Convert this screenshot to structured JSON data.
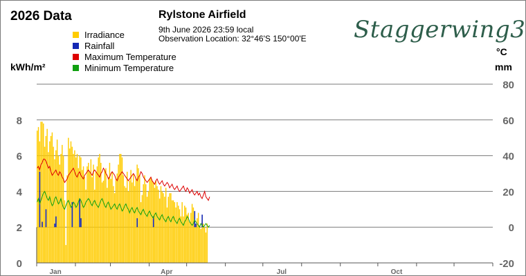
{
  "header": {
    "title": "2026 Data",
    "station": "Rylstone Airfield",
    "timestamp": "9th June 2026  23:59 local",
    "location": "Observation Location: 32°46'S 150°00'E",
    "brand": "Staggerwing3"
  },
  "axes": {
    "left_unit": "kWh/m²",
    "right_unit_top": "°C",
    "right_unit_bottom": "mm"
  },
  "legend": [
    {
      "label": "Irradiance",
      "color": "#ffcc00"
    },
    {
      "label": "Rainfall",
      "color": "#1428b4"
    },
    {
      "label": "Maximum Temperature",
      "color": "#dd0000"
    },
    {
      "label": "Minimum Temperature",
      "color": "#11a011"
    }
  ],
  "chart_data": {
    "type": "bar",
    "title": "2026 Data",
    "left_axis": {
      "label": "kWh/m²",
      "ticks": [
        0,
        2,
        4,
        6,
        8
      ],
      "range": [
        0,
        8
      ]
    },
    "right_axis": {
      "label": "°C / mm",
      "ticks": [
        -20,
        0,
        20,
        40,
        60,
        80
      ],
      "range": [
        -20,
        80
      ]
    },
    "x_axis": {
      "type": "day-of-year",
      "ticks": [
        "Jan",
        "Apr",
        "Jul",
        "Oct"
      ],
      "range": [
        1,
        365
      ]
    },
    "grid": true,
    "legend_position": "top-left",
    "series": [
      {
        "name": "Irradiance",
        "color": "#ffcc00",
        "type": "bar",
        "axis": "left",
        "start_day": 1,
        "values": [
          7.4,
          7.6,
          6.8,
          7.9,
          7.9,
          7.8,
          6.5,
          7.1,
          7.5,
          6.2,
          6.8,
          7.1,
          7.3,
          6.5,
          5.8,
          6.3,
          6.9,
          6.0,
          5.5,
          6.1,
          6.6,
          6.0,
          3.5,
          1.0,
          4.9,
          7.0,
          6.4,
          6.8,
          6.5,
          6.1,
          6.3,
          5.9,
          6.1,
          5.3,
          6.0,
          5.9,
          5.2,
          5.4,
          4.8,
          4.1,
          5.4,
          5.6,
          5.1,
          5.8,
          4.8,
          5.5,
          4.1,
          5.1,
          5.4,
          5.9,
          6.1,
          5.6,
          4.5,
          4.6,
          5.2,
          5.3,
          4.2,
          4.8,
          5.6,
          4.7,
          5.1,
          4.3,
          3.9,
          4.7,
          5.0,
          5.5,
          6.1,
          6.1,
          5.9,
          4.9,
          4.3,
          4.2,
          5.1,
          4.0,
          4.6,
          5.2,
          4.5,
          5.0,
          4.3,
          4.7,
          5.5,
          5.3,
          4.9,
          3.4,
          3.8,
          4.4,
          4.9,
          4.4,
          3.7,
          4.0,
          4.7,
          4.8,
          4.6,
          4.5,
          4.2,
          4.6,
          4.3,
          4.1,
          3.6,
          4.3,
          4.0,
          3.9,
          3.7,
          4.2,
          3.1,
          3.7,
          3.9,
          3.9,
          3.5,
          3.5,
          3.4,
          3.1,
          3.4,
          3.2,
          3.0,
          2.6,
          3.4,
          2.6,
          3.2,
          3.1,
          2.7,
          2.8,
          2.3,
          2.8,
          3.3,
          3.1,
          2.4,
          2.2,
          2.5,
          2.8,
          2.1,
          1.9,
          2.4,
          2.2,
          2.0,
          1.7,
          2.2
        ]
      },
      {
        "name": "Rainfall",
        "color": "#1428b4",
        "type": "bar",
        "axis": "right",
        "start_day": 1,
        "values": [
          0,
          0,
          31,
          0,
          3,
          0,
          0,
          10,
          0,
          0,
          0,
          0,
          0,
          0,
          2,
          6,
          0,
          0,
          0,
          0,
          0,
          0,
          0,
          0,
          0,
          0,
          0,
          0,
          14,
          0,
          0,
          0,
          0,
          0,
          16,
          5,
          0,
          0,
          0,
          0,
          0,
          0,
          0,
          0,
          0,
          0,
          0,
          0,
          0,
          0,
          0,
          0,
          0,
          0,
          0,
          0,
          0,
          0,
          0,
          0,
          0,
          0,
          0,
          0,
          0,
          0,
          0,
          0,
          0,
          0,
          0,
          0,
          0,
          0,
          0,
          0,
          0,
          0,
          0,
          0,
          5,
          0,
          0,
          0,
          0,
          0,
          0,
          0,
          0,
          0,
          0,
          0,
          0,
          6,
          0,
          0,
          0,
          0,
          0,
          0,
          0,
          0,
          0,
          0,
          0,
          0,
          0,
          0,
          0,
          0,
          0,
          0,
          0,
          0,
          0,
          0,
          0,
          0,
          0,
          0,
          0,
          0,
          0,
          0,
          0,
          0,
          9,
          2,
          0,
          0,
          0,
          0,
          7,
          0,
          0,
          0,
          0,
          0,
          0,
          0,
          0
        ]
      },
      {
        "name": "Maximum Temperature",
        "color": "#dd0000",
        "type": "line",
        "axis": "right",
        "start_day": 1,
        "values": [
          33,
          34,
          32,
          35,
          36,
          38,
          38,
          37,
          35,
          33,
          34,
          31,
          29,
          30,
          31,
          32,
          30,
          29,
          31,
          30,
          28,
          27,
          25,
          26,
          27,
          29,
          30,
          31,
          32,
          33,
          31,
          29,
          28,
          30,
          31,
          29,
          28,
          27,
          29,
          30,
          31,
          32,
          31,
          30,
          29,
          31,
          32,
          31,
          30,
          29,
          28,
          30,
          31,
          33,
          32,
          30,
          29,
          27,
          28,
          30,
          31,
          30,
          29,
          27,
          26,
          28,
          29,
          30,
          31,
          30,
          29,
          28,
          27,
          26,
          27,
          28,
          29,
          30,
          29,
          27,
          26,
          28,
          29,
          31,
          30,
          28,
          27,
          26,
          25,
          26,
          27,
          28,
          26,
          25,
          24,
          26,
          27,
          25,
          24,
          25,
          26,
          24,
          23,
          24,
          25,
          24,
          22,
          23,
          24,
          22,
          21,
          22,
          23,
          21,
          20,
          21,
          22,
          23,
          21,
          20,
          22,
          21,
          19,
          20,
          21,
          19,
          18,
          19,
          20,
          18,
          19,
          17,
          16,
          18,
          20,
          17,
          16,
          15,
          17
        ]
      },
      {
        "name": "Minimum Temperature",
        "color": "#11a011",
        "type": "line",
        "axis": "right",
        "start_day": 1,
        "values": [
          14,
          16,
          13,
          15,
          17,
          19,
          20,
          18,
          16,
          15,
          17,
          14,
          12,
          13,
          16,
          17,
          15,
          13,
          14,
          16,
          13,
          11,
          10,
          12,
          14,
          15,
          13,
          11,
          12,
          14,
          13,
          11,
          12,
          14,
          16,
          15,
          13,
          11,
          12,
          14,
          15,
          16,
          15,
          13,
          12,
          14,
          15,
          13,
          12,
          11,
          13,
          15,
          16,
          14,
          12,
          11,
          13,
          14,
          12,
          10,
          11,
          12,
          13,
          11,
          10,
          12,
          13,
          11,
          9,
          10,
          12,
          13,
          11,
          10,
          8,
          10,
          11,
          9,
          8,
          10,
          11,
          9,
          8,
          7,
          9,
          10,
          8,
          7,
          6,
          8,
          9,
          7,
          6,
          5,
          7,
          8,
          6,
          5,
          4,
          6,
          7,
          5,
          4,
          3,
          5,
          6,
          4,
          3,
          5,
          6,
          4,
          3,
          2,
          4,
          5,
          3,
          2,
          1,
          3,
          4,
          6,
          5,
          3,
          2,
          1,
          2,
          4,
          3,
          2,
          1,
          0,
          2,
          1,
          0,
          1,
          2,
          1,
          0,
          1
        ]
      }
    ]
  }
}
